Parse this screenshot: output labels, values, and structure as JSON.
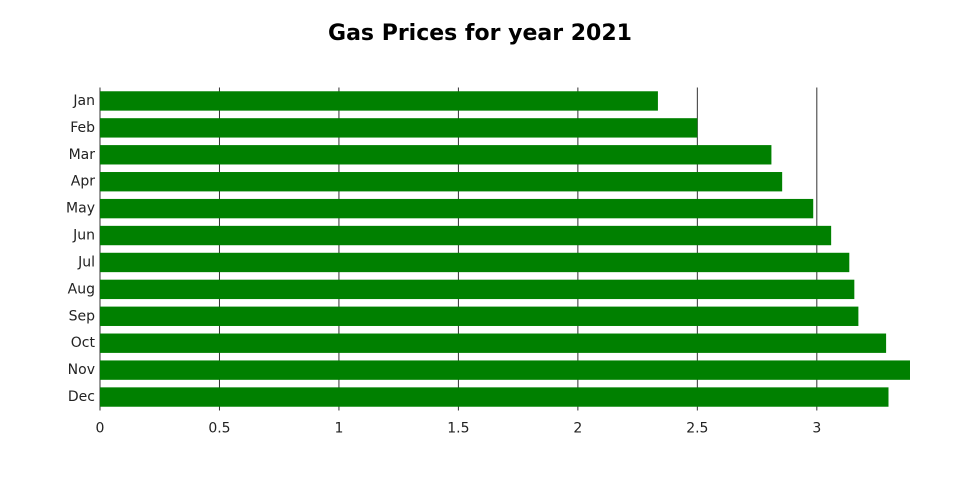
{
  "chart_data": {
    "type": "bar",
    "orientation": "horizontal",
    "title": "Gas Prices for year 2021",
    "categories": [
      "Jan",
      "Feb",
      "Mar",
      "Apr",
      "May",
      "Jun",
      "Jul",
      "Aug",
      "Sep",
      "Oct",
      "Nov",
      "Dec"
    ],
    "values": [
      2.335,
      2.5,
      2.81,
      2.855,
      2.985,
      3.06,
      3.136,
      3.157,
      3.174,
      3.29,
      3.39,
      3.3
    ],
    "color": "#008000",
    "xlim": [
      0,
      3.39
    ],
    "xticks": [
      0,
      0.5,
      1,
      1.5,
      2,
      2.5,
      3
    ],
    "grid": true
  }
}
